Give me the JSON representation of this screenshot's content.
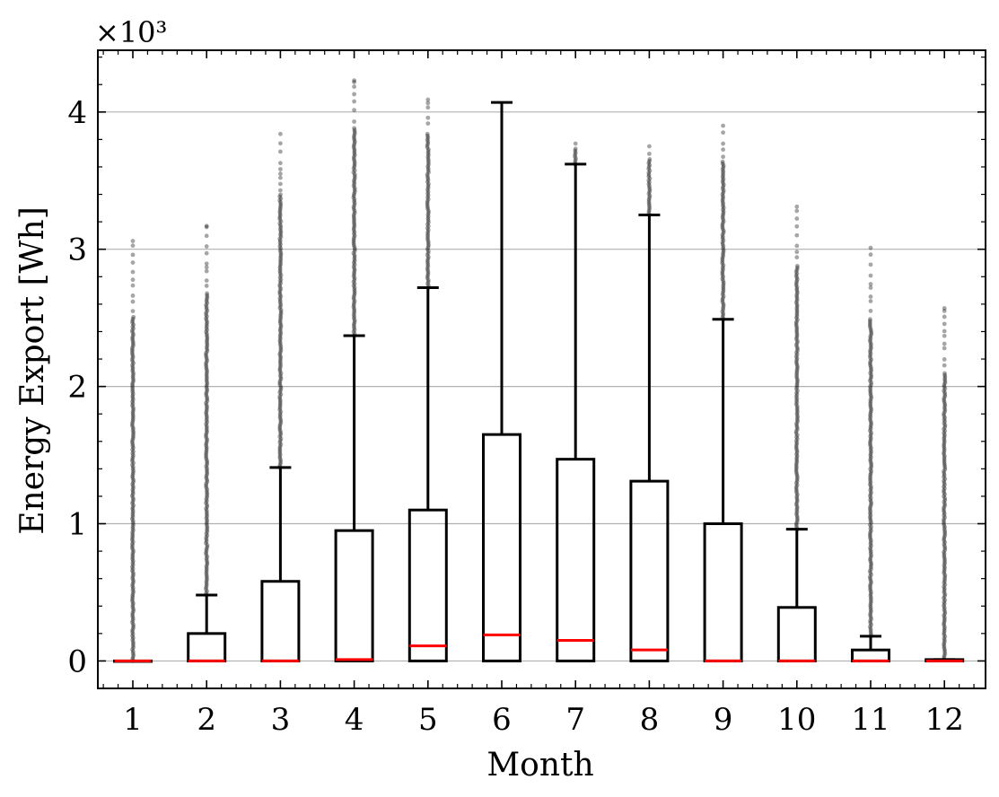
{
  "chart_data": {
    "type": "box",
    "title": "",
    "xlabel": "Month",
    "ylabel": "Energy Export [Wh]",
    "scale_label": "×10³",
    "ylim": [
      -200,
      4450
    ],
    "yticks": [
      0,
      1000,
      2000,
      3000,
      4000
    ],
    "ytick_labels": [
      "0",
      "1",
      "2",
      "3",
      "4"
    ],
    "categories": [
      "1",
      "2",
      "3",
      "4",
      "5",
      "6",
      "7",
      "8",
      "9",
      "10",
      "11",
      "12"
    ],
    "grid": "horizontal",
    "colors": {
      "box": "#000000",
      "median": "#ff0000",
      "outlier": "#000000",
      "grid": "#b0b0b0"
    },
    "boxes": [
      {
        "month": "1",
        "q1": 0,
        "median": 0,
        "q3": 0,
        "whisker_low": 0,
        "whisker_high": 0,
        "outlier_max": 3060
      },
      {
        "month": "2",
        "q1": 0,
        "median": 0,
        "q3": 200,
        "whisker_low": 0,
        "whisker_high": 480,
        "outlier_max": 3170
      },
      {
        "month": "3",
        "q1": 0,
        "median": 0,
        "q3": 580,
        "whisker_low": 0,
        "whisker_high": 1410,
        "outlier_max": 3840
      },
      {
        "month": "4",
        "q1": 0,
        "median": 10,
        "q3": 950,
        "whisker_low": 0,
        "whisker_high": 2370,
        "outlier_max": 4230
      },
      {
        "month": "5",
        "q1": 0,
        "median": 110,
        "q3": 1100,
        "whisker_low": 0,
        "whisker_high": 2720,
        "outlier_max": 4090
      },
      {
        "month": "6",
        "q1": 0,
        "median": 190,
        "q3": 1650,
        "whisker_low": 0,
        "whisker_high": 4070,
        "outlier_max": null
      },
      {
        "month": "7",
        "q1": 0,
        "median": 150,
        "q3": 1470,
        "whisker_low": 0,
        "whisker_high": 3620,
        "outlier_max": 3770
      },
      {
        "month": "8",
        "q1": 0,
        "median": 80,
        "q3": 1310,
        "whisker_low": 0,
        "whisker_high": 3250,
        "outlier_max": 3750
      },
      {
        "month": "9",
        "q1": 0,
        "median": 0,
        "q3": 1000,
        "whisker_low": 0,
        "whisker_high": 2490,
        "outlier_max": 3900
      },
      {
        "month": "10",
        "q1": 0,
        "median": 0,
        "q3": 390,
        "whisker_low": 0,
        "whisker_high": 960,
        "outlier_max": 3310
      },
      {
        "month": "11",
        "q1": 0,
        "median": 0,
        "q3": 80,
        "whisker_low": 0,
        "whisker_high": 180,
        "outlier_max": 3010
      },
      {
        "month": "12",
        "q1": 0,
        "median": 0,
        "q3": 10,
        "whisker_low": 0,
        "whisker_high": 10,
        "outlier_max": 2570
      }
    ]
  }
}
